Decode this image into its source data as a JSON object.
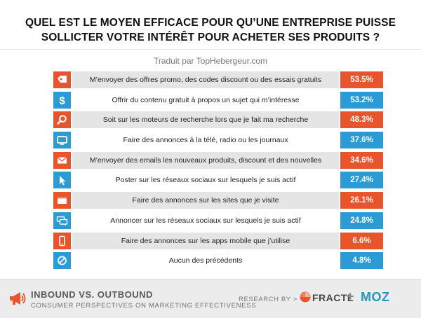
{
  "chart_data": {
    "type": "bar",
    "title_line1": "QUEL EST LE MOYEN EFFICACE POUR QU’UNE ENTREPRISE PUISSE",
    "title_line2": "SOLLICTER VOTRE INTÉRÊT POUR ACHETER SES PRODUITS ?",
    "subtitle": "Traduit par TopHebergeur.com",
    "rows": [
      {
        "label": "M’envoyer des offres promo, des codes discount ou des essais gratuits",
        "value": "53.5%",
        "icon": "price-tag-icon",
        "color": "#e8542b"
      },
      {
        "label": "Offrir du contenu gratuit à propos un sujet qui m’intéresse",
        "value": "53.2%",
        "icon": "dollar-icon",
        "color": "#2b9bd6"
      },
      {
        "label": "Soit sur les moteurs de recherche lors que je fait ma recherche",
        "value": "48.3%",
        "icon": "magnifier-icon",
        "color": "#e8542b"
      },
      {
        "label": "Faire des annonces à la télé, radio ou les journaux",
        "value": "37.6%",
        "icon": "tv-icon",
        "color": "#2b9bd6"
      },
      {
        "label": "M’envoyer des emails les nouveaux produits, discount et des nouvelles",
        "value": "34.6%",
        "icon": "envelope-icon",
        "color": "#e8542b"
      },
      {
        "label": "Poster sur les réseaux sociaux sur lesquels je suis actif",
        "value": "27.4%",
        "icon": "cursor-icon",
        "color": "#2b9bd6"
      },
      {
        "label": "Faire des annonces sur les sites que je visite",
        "value": "26.1%",
        "icon": "browser-icon",
        "color": "#e8542b"
      },
      {
        "label": "Annoncer sur les réseaux sociaux sur lesquels je suis actif",
        "value": "24.8%",
        "icon": "chat-bubbles-icon",
        "color": "#2b9bd6"
      },
      {
        "label": "Faire des annonces sur les apps mobile que j’utilise",
        "value": "6.6%",
        "icon": "mobile-icon",
        "color": "#e8542b"
      },
      {
        "label": "Aucun des précédents",
        "value": "4.8%",
        "icon": "none-icon",
        "color": "#2b9bd6"
      }
    ]
  },
  "footer": {
    "title": "INBOUND VS. OUTBOUND",
    "subtitle": "CONSUMER PERSPECTIVES ON MARKETING EFFECTIVENESS",
    "research_by": "RESEARCH BY >",
    "fractl": "FRACTL",
    "plus": "+",
    "moz": "MOZ",
    "icon": "megaphone-icon"
  }
}
